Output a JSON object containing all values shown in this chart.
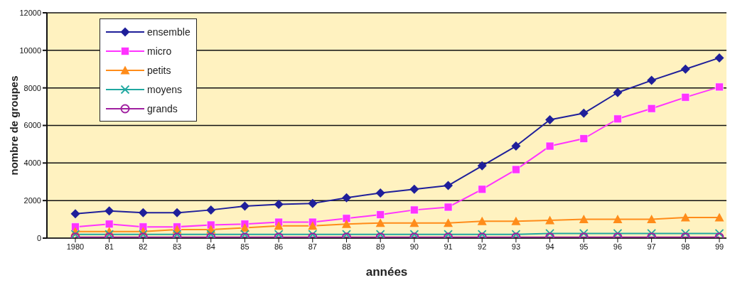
{
  "chart_data": {
    "type": "line",
    "xlabel": "années",
    "ylabel": "nombre de groupes",
    "categories": [
      "1980",
      "81",
      "82",
      "83",
      "84",
      "85",
      "86",
      "87",
      "88",
      "89",
      "90",
      "91",
      "92",
      "93",
      "94",
      "95",
      "96",
      "97",
      "98",
      "99"
    ],
    "series": [
      {
        "name": "ensemble",
        "color": "#1f1f9a",
        "marker": "diamond",
        "values": [
          1300,
          1450,
          1350,
          1350,
          1500,
          1700,
          1800,
          1850,
          2150,
          2400,
          2600,
          2800,
          3850,
          4900,
          6300,
          6650,
          7750,
          8400,
          9000,
          9600
        ]
      },
      {
        "name": "micro",
        "color": "#ff33ff",
        "marker": "square",
        "values": [
          600,
          750,
          600,
          600,
          700,
          750,
          850,
          850,
          1050,
          1250,
          1500,
          1650,
          2600,
          3650,
          4900,
          5300,
          6350,
          6900,
          7500,
          8050
        ]
      },
      {
        "name": "petits",
        "color": "#ff8c1a",
        "marker": "triangle",
        "values": [
          350,
          350,
          350,
          450,
          450,
          550,
          650,
          650,
          750,
          800,
          800,
          800,
          900,
          900,
          950,
          1000,
          1000,
          1000,
          1100,
          1100
        ]
      },
      {
        "name": "moyens",
        "color": "#20a8a0",
        "marker": "cross",
        "values": [
          200,
          200,
          200,
          200,
          200,
          200,
          200,
          200,
          200,
          200,
          200,
          200,
          200,
          200,
          250,
          250,
          250,
          250,
          250,
          250
        ]
      },
      {
        "name": "grands",
        "color": "#a020a0",
        "marker": "circle",
        "values": [
          50,
          50,
          50,
          50,
          50,
          50,
          50,
          50,
          50,
          50,
          50,
          50,
          50,
          50,
          50,
          50,
          50,
          50,
          50,
          50
        ]
      }
    ],
    "ylim": [
      0,
      12000
    ],
    "yticks": [
      0,
      2000,
      4000,
      6000,
      8000,
      10000,
      12000
    ],
    "grid": "y",
    "legend": "top left"
  }
}
